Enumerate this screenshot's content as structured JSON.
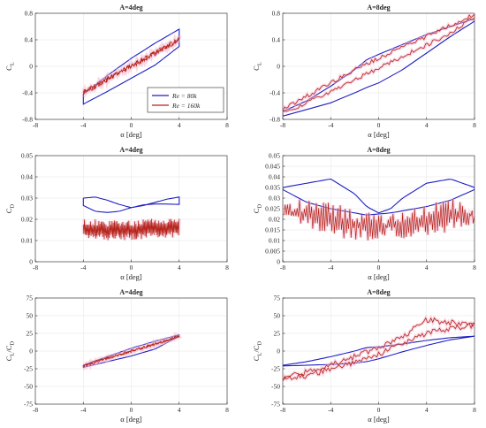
{
  "colors": {
    "re80k": "#1f1fc4",
    "re160k": "#b5221a",
    "band": "#f4b8cf"
  },
  "legend": {
    "placement": "inside-bottom-right of top-left panel",
    "entries": [
      "Re = 80k",
      "Re = 160k"
    ],
    "panel": 0
  },
  "chart_data": [
    {
      "type": "line",
      "title": "A=4deg",
      "ylabel_main": "C",
      "ylabel_sub": "L",
      "xlabel": "α [deg]",
      "xlim": [
        -8,
        8
      ],
      "xticks": [
        -8,
        -4,
        0,
        4,
        8
      ],
      "ylim": [
        -0.8,
        0.8
      ],
      "yticks": [
        -0.8,
        -0.4,
        0,
        0.4,
        0.8
      ],
      "ytick_labels": [
        "-0.8",
        "-0.4",
        "0",
        "0.4",
        "0.8"
      ],
      "series": [
        {
          "name": "Re = 80k",
          "kind": "loop",
          "x": [
            -4,
            -2,
            0,
            2,
            4
          ],
          "y_upper": [
            -0.42,
            -0.14,
            0.12,
            0.35,
            0.56
          ],
          "y_lower": [
            -0.57,
            -0.38,
            -0.18,
            0.02,
            0.3
          ]
        },
        {
          "name": "Re = 160k",
          "kind": "noisy",
          "x": [
            -4,
            -2,
            0,
            2,
            4
          ],
          "y": [
            -0.4,
            -0.2,
            0.0,
            0.2,
            0.4
          ],
          "spread": 0.04
        }
      ]
    },
    {
      "type": "line",
      "title": "A=8deg",
      "ylabel_main": "C",
      "ylabel_sub": "L",
      "xlabel": "α [deg]",
      "xlim": [
        -8,
        8
      ],
      "xticks": [
        -8,
        -4,
        0,
        4,
        8
      ],
      "ylim": [
        -0.8,
        0.8
      ],
      "yticks": [
        -0.8,
        -0.4,
        0,
        0.4,
        0.8
      ],
      "ytick_labels": [
        "-0.8",
        "-0.4",
        "0",
        "0.4",
        "0.8"
      ],
      "series": [
        {
          "name": "Re = 80k",
          "kind": "loop",
          "x": [
            -8,
            -6,
            -4,
            -2,
            -1,
            0,
            2,
            4,
            6,
            8
          ],
          "y_upper": [
            -0.68,
            -0.52,
            -0.3,
            -0.05,
            0.1,
            0.18,
            0.33,
            0.48,
            0.6,
            0.72
          ],
          "y_lower": [
            -0.75,
            -0.65,
            -0.55,
            -0.4,
            -0.32,
            -0.25,
            -0.05,
            0.2,
            0.45,
            0.68
          ]
        },
        {
          "name": "Re = 160k",
          "kind": "loop",
          "x": [
            -8,
            -6,
            -4,
            -2,
            0,
            2,
            4,
            6,
            8
          ],
          "y_upper": [
            -0.65,
            -0.45,
            -0.25,
            -0.05,
            0.12,
            0.3,
            0.45,
            0.62,
            0.78
          ],
          "y_lower": [
            -0.7,
            -0.55,
            -0.38,
            -0.2,
            -0.03,
            0.15,
            0.32,
            0.5,
            0.75
          ],
          "spread": 0.03
        }
      ]
    },
    {
      "type": "line",
      "title": "A=4deg",
      "ylabel_main": "C",
      "ylabel_sub": "D",
      "xlabel": "α [deg]",
      "xlim": [
        -8,
        8
      ],
      "xticks": [
        -8,
        -4,
        0,
        4,
        8
      ],
      "ylim": [
        0,
        0.05
      ],
      "yticks": [
        0,
        0.01,
        0.02,
        0.03,
        0.04,
        0.05
      ],
      "ytick_labels": [
        "0",
        "0.01",
        "0.02",
        "0.03",
        "0.04",
        "0.05"
      ],
      "series": [
        {
          "name": "Re = 80k",
          "kind": "loop",
          "x": [
            -4,
            -3,
            -2,
            -1,
            0,
            1,
            2,
            3,
            4
          ],
          "y_upper": [
            0.03,
            0.0305,
            0.029,
            0.027,
            0.0255,
            0.0265,
            0.028,
            0.0295,
            0.0305
          ],
          "y_lower": [
            0.0265,
            0.0238,
            0.0232,
            0.0238,
            0.0255,
            0.0268,
            0.0272,
            0.0272,
            0.027
          ]
        },
        {
          "name": "Re = 160k",
          "kind": "band",
          "x": [
            -4,
            -2,
            0,
            2,
            4
          ],
          "y_upper": [
            0.019,
            0.018,
            0.018,
            0.019,
            0.019
          ],
          "y_lower": [
            0.0125,
            0.0115,
            0.0118,
            0.0125,
            0.013
          ],
          "spread": 0.0015
        }
      ]
    },
    {
      "type": "line",
      "title": "A=8deg",
      "ylabel_main": "C",
      "ylabel_sub": "D",
      "xlabel": "α [deg]",
      "xlim": [
        -8,
        8
      ],
      "xticks": [
        -8,
        -4,
        0,
        4,
        8
      ],
      "ylim": [
        0,
        0.05
      ],
      "yticks": [
        0,
        0.005,
        0.01,
        0.015,
        0.02,
        0.025,
        0.03,
        0.035,
        0.04,
        0.045,
        0.05
      ],
      "ytick_labels": [
        "0",
        "0.005",
        "0.01",
        "0.015",
        "0.02",
        "0.025",
        "0.03",
        "0.035",
        "0.04",
        "0.045",
        "0.05"
      ],
      "series": [
        {
          "name": "Re = 80k",
          "kind": "loop",
          "x": [
            -8,
            -6,
            -4,
            -2,
            -1,
            0,
            1,
            2,
            4,
            6,
            8
          ],
          "y_upper": [
            0.035,
            0.037,
            0.039,
            0.032,
            0.026,
            0.023,
            0.025,
            0.03,
            0.037,
            0.039,
            0.035
          ],
          "y_lower": [
            0.034,
            0.028,
            0.025,
            0.023,
            0.022,
            0.0225,
            0.023,
            0.024,
            0.026,
            0.029,
            0.034
          ]
        },
        {
          "name": "Re = 160k",
          "kind": "band",
          "x": [
            -8,
            -6,
            -4,
            -2,
            0,
            2,
            4,
            6,
            8
          ],
          "y_upper": [
            0.025,
            0.027,
            0.025,
            0.022,
            0.02,
            0.021,
            0.024,
            0.027,
            0.024
          ],
          "y_lower": [
            0.022,
            0.018,
            0.015,
            0.013,
            0.013,
            0.014,
            0.015,
            0.017,
            0.021
          ],
          "spread": 0.003
        }
      ]
    },
    {
      "type": "line",
      "title": "A=4deg",
      "ylabel_main": "C",
      "ylabel_sub": "L",
      "ylabel_mid": "/C",
      "ylabel_sub2": "D",
      "xlabel": "α [deg]",
      "xlim": [
        -8,
        8
      ],
      "xticks": [
        -8,
        -4,
        0,
        4,
        8
      ],
      "ylim": [
        -75,
        75
      ],
      "yticks": [
        -75,
        -50,
        -25,
        0,
        25,
        50,
        75
      ],
      "ytick_labels": [
        "-75",
        "-50",
        "-25",
        "0",
        "25",
        "50",
        "75"
      ],
      "series": [
        {
          "name": "Re = 80k",
          "kind": "loop",
          "x": [
            -4,
            -2,
            0,
            2,
            4
          ],
          "y_upper": [
            -20,
            -8,
            4,
            14,
            23
          ],
          "y_lower": [
            -23,
            -15,
            -7,
            3,
            21
          ]
        },
        {
          "name": "Re = 160k",
          "kind": "noisy",
          "x": [
            -4,
            -2,
            0,
            2,
            4
          ],
          "y": [
            -21,
            -10,
            0,
            10,
            21
          ],
          "spread": 2
        }
      ]
    },
    {
      "type": "line",
      "title": "A=8deg",
      "ylabel_main": "C",
      "ylabel_sub": "L",
      "ylabel_mid": "/C",
      "ylabel_sub2": "D",
      "xlabel": "α [deg]",
      "xlim": [
        -8,
        8
      ],
      "xticks": [
        -8,
        -4,
        0,
        4,
        8
      ],
      "ylim": [
        -75,
        75
      ],
      "yticks": [
        -75,
        -50,
        -25,
        0,
        25,
        50,
        75
      ],
      "ytick_labels": [
        "-75",
        "-50",
        "-25",
        "0",
        "25",
        "50",
        "75"
      ],
      "series": [
        {
          "name": "Re = 80k",
          "kind": "loop",
          "x": [
            -8,
            -6,
            -4,
            -2,
            -1,
            0,
            2,
            4,
            6,
            8
          ],
          "y_upper": [
            -20,
            -15,
            -8,
            0,
            5,
            6,
            10,
            15,
            19,
            21
          ],
          "y_lower": [
            -21,
            -20,
            -19,
            -17,
            -15,
            -11,
            -1,
            8,
            16,
            21
          ]
        },
        {
          "name": "Re = 160k",
          "kind": "loop",
          "x": [
            -8,
            -6,
            -4,
            -2,
            0,
            2,
            4,
            6,
            8
          ],
          "y_upper": [
            -38,
            -30,
            -20,
            -8,
            5,
            20,
            44,
            40,
            38
          ],
          "y_lower": [
            -40,
            -35,
            -25,
            -17,
            -5,
            10,
            25,
            32,
            37
          ],
          "spread": 4
        }
      ]
    }
  ]
}
